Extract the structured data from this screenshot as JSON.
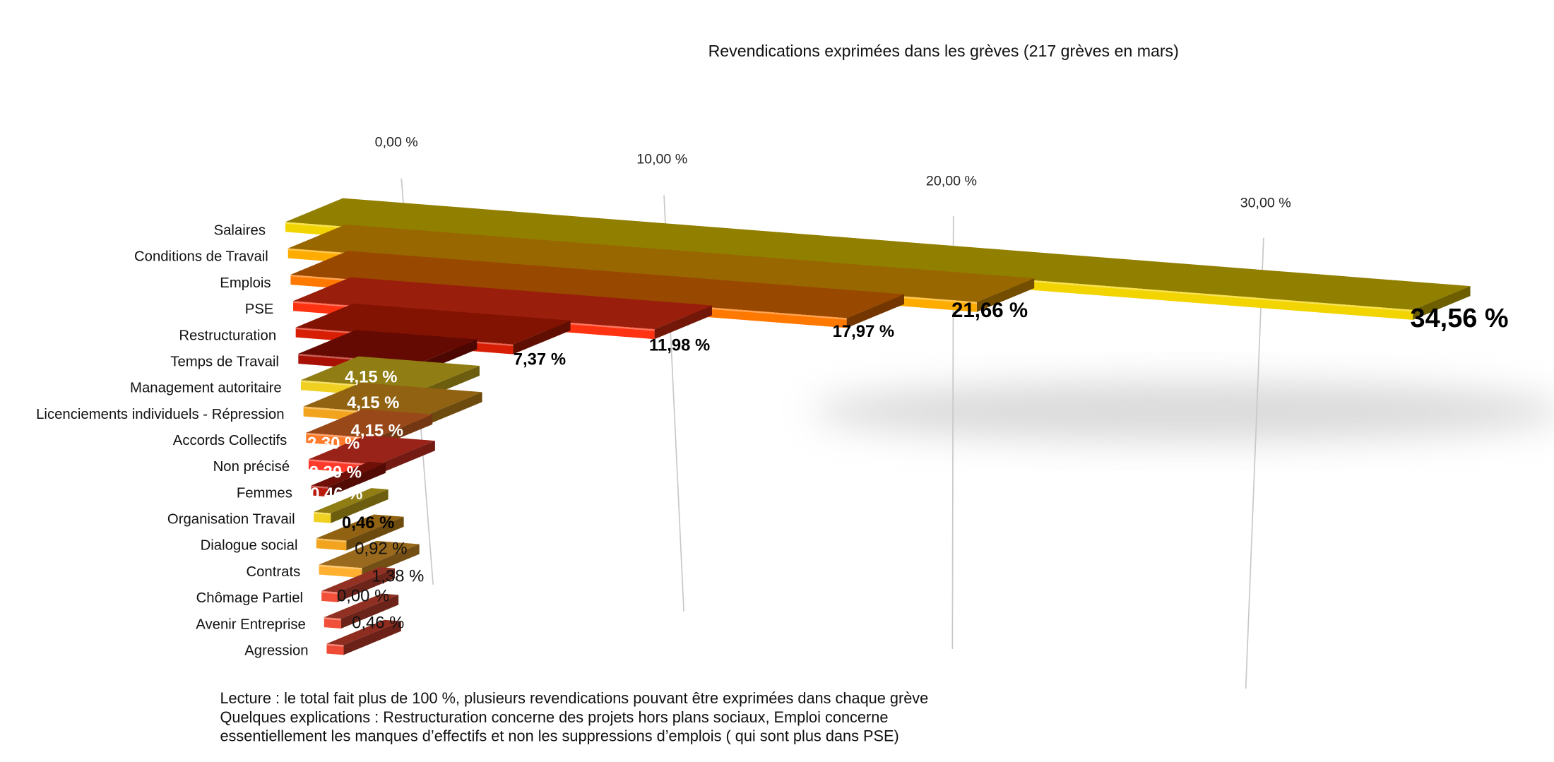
{
  "chart_data": {
    "type": "bar",
    "orientation": "horizontal",
    "style": "3d",
    "title": "Revendications exprimées dans les grèves (217 grèves en mars)",
    "xlabel": "",
    "ylabel": "",
    "xlim": [
      0,
      35
    ],
    "x_ticks": [
      "0,00 %",
      "10,00 %",
      "20,00 %",
      "30,00 %"
    ],
    "grid": true,
    "legend": "none",
    "categories": [
      "Salaires",
      "Conditions de Travail",
      "Emplois",
      "PSE",
      "Restructuration",
      "Temps de Travail",
      "Management autoritaire",
      "Licenciements individuels - Répression",
      "Accords Collectifs",
      "Non précisé",
      "Femmes",
      "Organisation Travail",
      "Dialogue social",
      "Contrats",
      "Chômage Partiel",
      "Avenir Entreprise",
      "Agression"
    ],
    "values": [
      34.56,
      21.66,
      17.97,
      11.98,
      7.37,
      4.15,
      4.15,
      4.15,
      2.3,
      2.3,
      0.46,
      0.46,
      0.92,
      1.38,
      0.0,
      0.46,
      0.46
    ],
    "data_labels": [
      "34,56 %",
      "21,66 %",
      "17,97 %",
      "11,98 %",
      "7,37 %",
      "4,15 %",
      "4,15 %",
      "4,15 %",
      "2,30 %",
      "2,30 %",
      "0,46 %",
      "0,46 %",
      "0,92 %",
      "1,38 %",
      "0,00 %",
      "0,46 %",
      ""
    ],
    "colors": [
      "#f2d400",
      "#ffac00",
      "#ff7800",
      "#ff3212",
      "#d81e04",
      "#a81004",
      "#f0d020",
      "#f2a41e",
      "#ff7a2a",
      "#ff3a2a",
      "#b81a0c",
      "#f0d020",
      "#f2a41e",
      "#ffb030",
      "#f2503a",
      "#f0503a",
      "#ee4a36"
    ],
    "notes": [
      "Lecture : le total fait plus de 100 %, plusieurs revendications pouvant être exprimées dans chaque grève",
      "Quelques explications : Restructuration concerne des projets hors plans sociaux, Emploi concerne",
      "essentiellement les manques d’effectifs et non les suppressions d’emplois ( qui sont plus dans PSE)"
    ]
  }
}
